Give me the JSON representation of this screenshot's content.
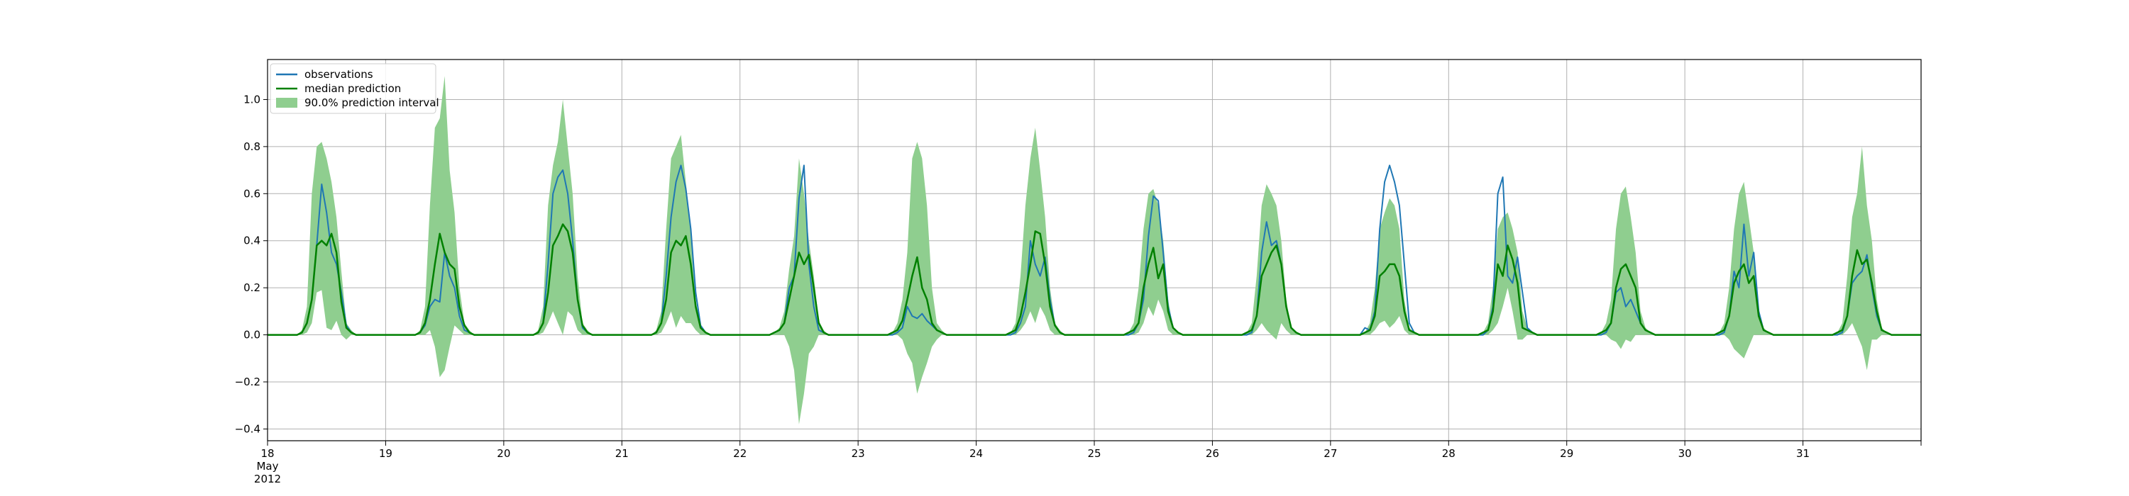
{
  "chart_data": {
    "type": "line",
    "title": "",
    "xlabel": "",
    "ylabel": "",
    "x_start": "2012-05-18",
    "x_end": "2012-06-01",
    "x_tick_labels": [
      [
        "18",
        "May",
        "2012"
      ],
      [
        "19"
      ],
      [
        "20"
      ],
      [
        "21"
      ],
      [
        "22"
      ],
      [
        "23"
      ],
      [
        "24"
      ],
      [
        "25"
      ],
      [
        "26"
      ],
      [
        "27"
      ],
      [
        "28"
      ],
      [
        "29"
      ],
      [
        "30"
      ],
      [
        "31"
      ]
    ],
    "ylim": [
      -0.45,
      1.17
    ],
    "y_ticks": [
      -0.4,
      -0.2,
      0.0,
      0.2,
      0.4,
      0.6,
      0.8,
      1.0
    ],
    "y_tick_labels": [
      "−0.4",
      "−0.2",
      "0.0",
      "0.2",
      "0.4",
      "0.6",
      "0.8",
      "1.0"
    ],
    "grid": true,
    "legend_position": "top-left",
    "legend": [
      {
        "label": "observations",
        "kind": "line",
        "color": "#1f77b4"
      },
      {
        "label": "median prediction",
        "kind": "line",
        "color": "#008000"
      },
      {
        "label": "90.0% prediction interval",
        "kind": "band",
        "color": "#8fce8f"
      }
    ],
    "colors": {
      "observations": "#1f77b4",
      "median": "#008000",
      "interval": "#8fce8f"
    },
    "days": [
      {
        "date": "2012-05-18",
        "observations": [
          0,
          0.01,
          0.05,
          0.15,
          0.38,
          0.64,
          0.52,
          0.35,
          0.3,
          0.18,
          0.04,
          0.01,
          0
        ],
        "median": [
          0,
          0.01,
          0.05,
          0.15,
          0.38,
          0.4,
          0.38,
          0.43,
          0.35,
          0.14,
          0.03,
          0.01,
          0
        ],
        "interval_low": [
          0,
          0,
          0.01,
          0.05,
          0.18,
          0.19,
          0.03,
          0.02,
          0.06,
          0,
          -0.02,
          0,
          0
        ],
        "interval_high": [
          0,
          0.02,
          0.12,
          0.6,
          0.8,
          0.82,
          0.75,
          0.65,
          0.5,
          0.27,
          0.05,
          0.02,
          0
        ]
      },
      {
        "date": "2012-05-19",
        "observations": [
          0,
          0.01,
          0.04,
          0.12,
          0.15,
          0.14,
          0.35,
          0.25,
          0.2,
          0.08,
          0.02,
          0.01,
          0
        ],
        "median": [
          0,
          0.01,
          0.05,
          0.15,
          0.3,
          0.43,
          0.35,
          0.3,
          0.28,
          0.12,
          0.04,
          0.01,
          0
        ],
        "interval_low": [
          0,
          0,
          0,
          0.02,
          -0.05,
          -0.18,
          -0.15,
          -0.05,
          0.04,
          0.02,
          0,
          0,
          0
        ],
        "interval_high": [
          0,
          0.02,
          0.12,
          0.55,
          0.88,
          0.92,
          1.1,
          0.7,
          0.52,
          0.2,
          0.05,
          0.02,
          0
        ]
      },
      {
        "date": "2012-05-20",
        "observations": [
          0,
          0.01,
          0.05,
          0.3,
          0.6,
          0.67,
          0.7,
          0.6,
          0.4,
          0.15,
          0.03,
          0.01,
          0
        ],
        "median": [
          0,
          0.01,
          0.05,
          0.18,
          0.38,
          0.42,
          0.47,
          0.44,
          0.35,
          0.15,
          0.04,
          0.01,
          0
        ],
        "interval_low": [
          0,
          0,
          0.01,
          0.05,
          0.1,
          0.05,
          0.0,
          0.1,
          0.08,
          0.02,
          0,
          0,
          0
        ],
        "interval_high": [
          0,
          0.02,
          0.12,
          0.55,
          0.72,
          0.82,
          1.0,
          0.8,
          0.6,
          0.25,
          0.05,
          0.02,
          0
        ]
      },
      {
        "date": "2012-05-21",
        "observations": [
          0,
          0.01,
          0.05,
          0.25,
          0.5,
          0.65,
          0.72,
          0.62,
          0.45,
          0.18,
          0.04,
          0.01,
          0
        ],
        "median": [
          0,
          0.01,
          0.05,
          0.15,
          0.35,
          0.4,
          0.38,
          0.42,
          0.3,
          0.12,
          0.03,
          0.01,
          0
        ],
        "interval_low": [
          0,
          0,
          0.01,
          0.05,
          0.1,
          0.03,
          0.08,
          0.05,
          0.05,
          0.02,
          0,
          0,
          0
        ],
        "interval_high": [
          0,
          0.02,
          0.1,
          0.45,
          0.75,
          0.8,
          0.85,
          0.65,
          0.45,
          0.15,
          0.03,
          0.01,
          0
        ]
      },
      {
        "date": "2012-05-22",
        "observations": [
          0,
          0.01,
          0.02,
          0.05,
          0.2,
          0.25,
          0.58,
          0.72,
          0.3,
          0.12,
          0.02,
          0.01,
          0
        ],
        "median": [
          0,
          0.01,
          0.02,
          0.05,
          0.15,
          0.25,
          0.35,
          0.3,
          0.34,
          0.2,
          0.05,
          0.01,
          0
        ],
        "interval_low": [
          0,
          0,
          0,
          0,
          -0.05,
          -0.15,
          -0.38,
          -0.25,
          -0.08,
          -0.05,
          0,
          0,
          0
        ],
        "interval_high": [
          0,
          0.01,
          0.03,
          0.1,
          0.28,
          0.42,
          0.75,
          0.6,
          0.4,
          0.25,
          0.06,
          0.02,
          0
        ]
      },
      {
        "date": "2012-05-23",
        "observations": [
          0,
          0,
          0.01,
          0.03,
          0.12,
          0.08,
          0.07,
          0.09,
          0.06,
          0.04,
          0.02,
          0.01,
          0
        ],
        "median": [
          0,
          0.01,
          0.02,
          0.06,
          0.15,
          0.25,
          0.33,
          0.2,
          0.15,
          0.05,
          0.02,
          0.01,
          0
        ],
        "interval_low": [
          0,
          0,
          0,
          -0.02,
          -0.08,
          -0.12,
          -0.25,
          -0.18,
          -0.12,
          -0.05,
          -0.02,
          0,
          0
        ],
        "interval_high": [
          0,
          0.01,
          0.05,
          0.15,
          0.35,
          0.75,
          0.82,
          0.75,
          0.55,
          0.2,
          0.05,
          0.02,
          0
        ]
      },
      {
        "date": "2012-05-24",
        "observations": [
          0,
          0,
          0.01,
          0.05,
          0.12,
          0.4,
          0.3,
          0.25,
          0.33,
          0.15,
          0.04,
          0.01,
          0
        ],
        "median": [
          0,
          0.01,
          0.02,
          0.08,
          0.18,
          0.3,
          0.44,
          0.43,
          0.3,
          0.12,
          0.04,
          0.01,
          0
        ],
        "interval_low": [
          0,
          0,
          0,
          0.02,
          0.05,
          0.1,
          0.05,
          0.12,
          0.08,
          0.02,
          0,
          0,
          0
        ],
        "interval_high": [
          0,
          0.01,
          0.05,
          0.25,
          0.55,
          0.75,
          0.88,
          0.7,
          0.5,
          0.2,
          0.05,
          0.02,
          0
        ]
      },
      {
        "date": "2012-05-25",
        "observations": [
          0,
          0,
          0.01,
          0.05,
          0.15,
          0.42,
          0.59,
          0.57,
          0.35,
          0.12,
          0.03,
          0.01,
          0
        ],
        "median": [
          0,
          0.01,
          0.02,
          0.05,
          0.2,
          0.3,
          0.37,
          0.24,
          0.3,
          0.1,
          0.03,
          0.01,
          0
        ],
        "interval_low": [
          0,
          0,
          0,
          0.01,
          0.05,
          0.12,
          0.08,
          0.15,
          0.1,
          0.02,
          0,
          0,
          0
        ],
        "interval_high": [
          0,
          0.01,
          0.05,
          0.2,
          0.45,
          0.6,
          0.62,
          0.55,
          0.4,
          0.15,
          0.03,
          0.01,
          0
        ]
      },
      {
        "date": "2012-05-26",
        "observations": [
          0,
          0,
          0.01,
          0.08,
          0.35,
          0.48,
          0.38,
          0.4,
          0.3,
          0.12,
          0.03,
          0.01,
          0
        ],
        "median": [
          0,
          0.01,
          0.02,
          0.08,
          0.25,
          0.3,
          0.35,
          0.38,
          0.3,
          0.12,
          0.03,
          0.01,
          0
        ],
        "interval_low": [
          0,
          0,
          0,
          0.02,
          0.05,
          0.02,
          0.0,
          -0.02,
          0.05,
          0.02,
          0,
          0,
          0
        ],
        "interval_high": [
          0,
          0.01,
          0.05,
          0.25,
          0.55,
          0.64,
          0.6,
          0.55,
          0.4,
          0.15,
          0.03,
          0.01,
          0
        ]
      },
      {
        "date": "2012-05-27",
        "observations": [
          0,
          0.03,
          0.02,
          0.1,
          0.45,
          0.65,
          0.72,
          0.65,
          0.55,
          0.3,
          0.05,
          0.01,
          0
        ],
        "median": [
          0,
          0.01,
          0.02,
          0.08,
          0.25,
          0.27,
          0.3,
          0.3,
          0.25,
          0.1,
          0.02,
          0.01,
          0
        ],
        "interval_low": [
          0,
          0,
          0,
          0.02,
          0.05,
          0.06,
          0.03,
          0.05,
          0.08,
          0.02,
          0,
          0,
          0
        ],
        "interval_high": [
          0,
          0.01,
          0.05,
          0.2,
          0.45,
          0.52,
          0.58,
          0.55,
          0.45,
          0.15,
          0.03,
          0.01,
          0
        ]
      },
      {
        "date": "2012-05-28",
        "observations": [
          0,
          0,
          0.02,
          0.12,
          0.6,
          0.67,
          0.25,
          0.22,
          0.33,
          0.18,
          0.03,
          0.01,
          0
        ],
        "median": [
          0,
          0.01,
          0.02,
          0.1,
          0.3,
          0.25,
          0.38,
          0.32,
          0.22,
          0.03,
          0.02,
          0.01,
          0
        ],
        "interval_low": [
          0,
          0,
          0,
          0.02,
          0.05,
          0.12,
          0.2,
          0.1,
          -0.02,
          -0.02,
          0,
          0,
          0
        ],
        "interval_high": [
          0,
          0.01,
          0.05,
          0.2,
          0.45,
          0.5,
          0.52,
          0.45,
          0.35,
          0.1,
          0.03,
          0.01,
          0
        ]
      },
      {
        "date": "2012-05-29",
        "observations": [
          0,
          0,
          0.01,
          0.05,
          0.18,
          0.2,
          0.12,
          0.15,
          0.1,
          0.05,
          0.02,
          0.01,
          0
        ],
        "median": [
          0,
          0.01,
          0.02,
          0.05,
          0.2,
          0.28,
          0.3,
          0.25,
          0.2,
          0.05,
          0.02,
          0.01,
          0
        ],
        "interval_low": [
          0,
          0,
          0,
          -0.02,
          -0.03,
          -0.06,
          -0.02,
          -0.03,
          0,
          0,
          0,
          0,
          0
        ],
        "interval_high": [
          0,
          0.01,
          0.05,
          0.15,
          0.45,
          0.6,
          0.63,
          0.5,
          0.35,
          0.1,
          0.03,
          0.01,
          0
        ]
      },
      {
        "date": "2012-05-30",
        "observations": [
          0,
          0,
          0.01,
          0.08,
          0.27,
          0.2,
          0.47,
          0.25,
          0.35,
          0.1,
          0.02,
          0.01,
          0
        ],
        "median": [
          0,
          0.01,
          0.02,
          0.08,
          0.22,
          0.27,
          0.3,
          0.22,
          0.25,
          0.08,
          0.02,
          0.01,
          0
        ],
        "interval_low": [
          0,
          0,
          0,
          -0.02,
          -0.06,
          -0.08,
          -0.1,
          -0.05,
          0,
          0,
          0,
          0,
          0
        ],
        "interval_high": [
          0,
          0.01,
          0.05,
          0.2,
          0.45,
          0.6,
          0.65,
          0.5,
          0.35,
          0.1,
          0.03,
          0.01,
          0
        ]
      },
      {
        "date": "2012-05-31",
        "observations": [
          0,
          0,
          0.01,
          0.08,
          0.22,
          0.25,
          0.27,
          0.34,
          0.2,
          0.08,
          0.02,
          0.01,
          0
        ],
        "median": [
          0,
          0.01,
          0.02,
          0.08,
          0.25,
          0.36,
          0.3,
          0.32,
          0.22,
          0.1,
          0.02,
          0.01,
          0
        ],
        "interval_low": [
          0,
          0,
          0,
          0.02,
          0.05,
          0.0,
          -0.05,
          -0.15,
          -0.02,
          -0.02,
          0,
          0,
          0
        ],
        "interval_high": [
          0,
          0.01,
          0.05,
          0.25,
          0.5,
          0.6,
          0.8,
          0.55,
          0.4,
          0.15,
          0.03,
          0.01,
          0
        ]
      }
    ]
  }
}
